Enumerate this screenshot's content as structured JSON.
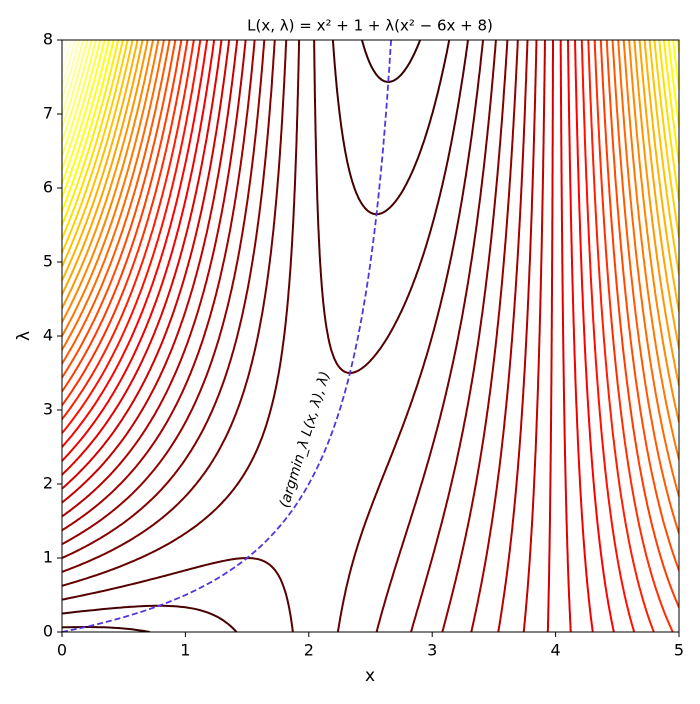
{
  "chart_data": {
    "type": "contour",
    "title": "L(x, λ) = x² + 1 + λ(x² − 6x + 8)",
    "x_label": "x",
    "y_label": "λ",
    "annotation": "(argmin_λ L(x, λ), λ)",
    "xlim": [
      0,
      5
    ],
    "ylim": [
      0,
      8
    ],
    "xticks": [
      0,
      1,
      2,
      3,
      4,
      5
    ],
    "yticks": [
      0,
      1,
      2,
      3,
      4,
      5,
      6,
      7,
      8
    ],
    "colormap": "hot",
    "curve_color": "#5533dd",
    "levels": [
      1.5,
      3,
      4.5,
      6,
      7.5,
      9,
      10.5,
      12,
      13.5,
      15,
      16.5,
      18,
      19.5,
      21,
      22.5,
      24,
      25.5,
      27,
      28.5,
      30,
      31.5,
      33,
      34.5,
      36,
      37.5,
      39,
      40.5,
      42,
      43.5,
      45,
      46.5,
      48,
      49.5,
      51,
      52.5,
      54,
      55.5,
      57,
      58.5,
      60,
      61.5,
      63,
      64.5
    ]
  }
}
